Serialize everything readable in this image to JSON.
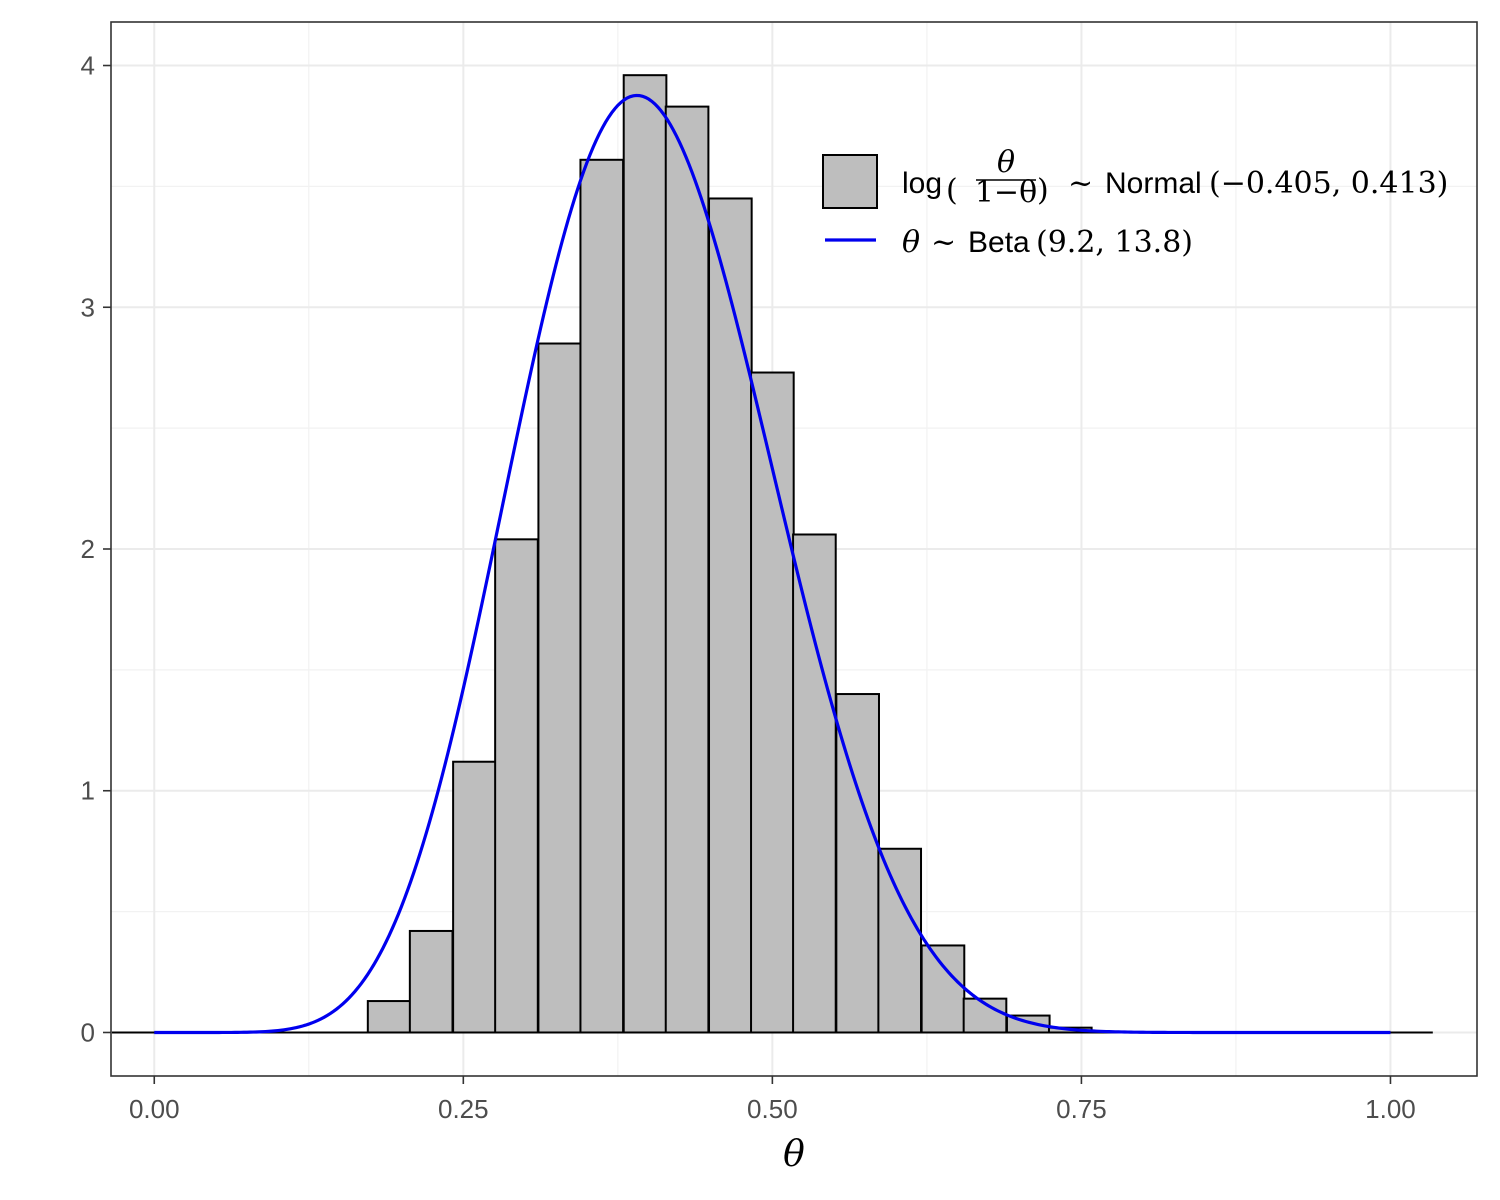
{
  "chart_data": {
    "type": "bar",
    "subtype": "histogram-with-density-curve",
    "xlabel": "θ",
    "ylabel": "",
    "xlim": [
      -0.035,
      1.07
    ],
    "ylim": [
      -0.18,
      4.18
    ],
    "grid": true,
    "legend_position": "top-right",
    "x_ticks": [
      {
        "value": 0.0,
        "label": "0.00"
      },
      {
        "value": 0.25,
        "label": "0.25"
      },
      {
        "value": 0.5,
        "label": "0.50"
      },
      {
        "value": 0.75,
        "label": "0.75"
      },
      {
        "value": 1.0,
        "label": "1.00"
      }
    ],
    "y_ticks": [
      {
        "value": 0,
        "label": "0"
      },
      {
        "value": 1,
        "label": "1"
      },
      {
        "value": 2,
        "label": "2"
      },
      {
        "value": 3,
        "label": "3"
      },
      {
        "value": 4,
        "label": "4"
      }
    ],
    "histogram": {
      "name": "log(θ/(1−θ)) ~ Normal(−0.405, 0.413)",
      "fill": "#bebebe",
      "stroke": "#000000",
      "bin_width": 0.0345,
      "bins": [
        {
          "x": -0.017,
          "value": 0.0
        },
        {
          "x": 0.017,
          "value": 0.0
        },
        {
          "x": 0.052,
          "value": 0.0
        },
        {
          "x": 0.086,
          "value": 0.0
        },
        {
          "x": 0.121,
          "value": 0.0
        },
        {
          "x": 0.155,
          "value": 0.0
        },
        {
          "x": 0.19,
          "value": 0.13
        },
        {
          "x": 0.224,
          "value": 0.42
        },
        {
          "x": 0.259,
          "value": 1.12
        },
        {
          "x": 0.293,
          "value": 2.04
        },
        {
          "x": 0.328,
          "value": 2.85
        },
        {
          "x": 0.362,
          "value": 3.61
        },
        {
          "x": 0.397,
          "value": 3.96
        },
        {
          "x": 0.431,
          "value": 3.83
        },
        {
          "x": 0.466,
          "value": 3.45
        },
        {
          "x": 0.5,
          "value": 2.73
        },
        {
          "x": 0.534,
          "value": 2.06
        },
        {
          "x": 0.569,
          "value": 1.4
        },
        {
          "x": 0.603,
          "value": 0.76
        },
        {
          "x": 0.638,
          "value": 0.36
        },
        {
          "x": 0.672,
          "value": 0.14
        },
        {
          "x": 0.707,
          "value": 0.07
        },
        {
          "x": 0.741,
          "value": 0.02
        },
        {
          "x": 0.776,
          "value": 0.0
        },
        {
          "x": 0.81,
          "value": 0.0
        },
        {
          "x": 0.845,
          "value": 0.0
        },
        {
          "x": 0.879,
          "value": 0.0
        },
        {
          "x": 0.914,
          "value": 0.0
        },
        {
          "x": 0.948,
          "value": 0.0
        },
        {
          "x": 0.983,
          "value": 0.0
        },
        {
          "x": 1.017,
          "value": 0.0
        }
      ]
    },
    "curve": {
      "name": "θ ~ Beta(9.2, 13.8)",
      "color": "#0000ee",
      "distribution": "beta",
      "alpha": 9.2,
      "beta": 13.8,
      "x_range": [
        0,
        1
      ]
    },
    "legend": [
      {
        "kind": "box",
        "prefix": "log",
        "fraction_num": "θ",
        "fraction_den": "1−θ",
        "suffix_sym": "~",
        "dist": "Normal",
        "params": "(−0.405, 0.413)"
      },
      {
        "kind": "line",
        "var": "θ",
        "suffix_sym": "~",
        "dist": "Beta",
        "params": "(9.2, 13.8)"
      }
    ]
  }
}
